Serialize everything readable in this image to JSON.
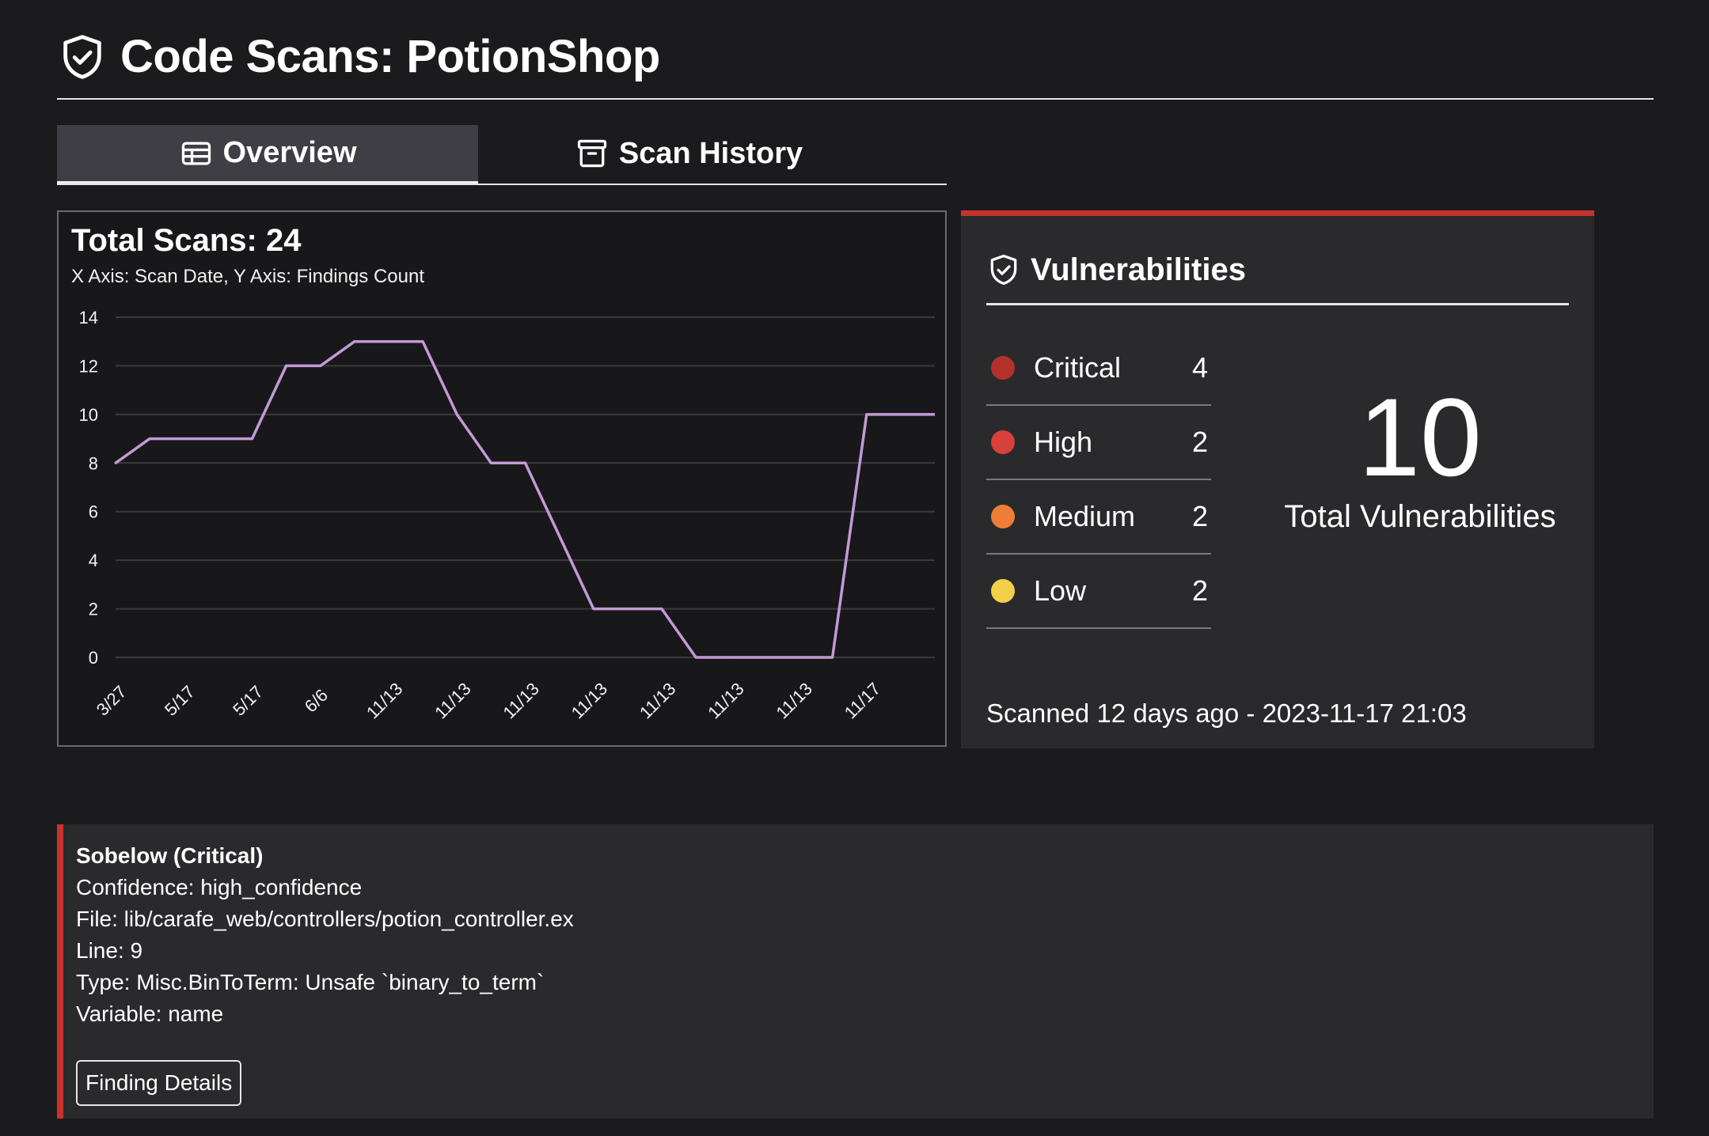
{
  "header": {
    "title": "Code Scans: PotionShop",
    "icon": "shield-check-icon"
  },
  "tabs": [
    {
      "label": "Overview",
      "icon": "table-icon",
      "active": true
    },
    {
      "label": "Scan History",
      "icon": "archive-icon",
      "active": false
    }
  ],
  "chart_panel": {
    "title": "Total Scans: 24",
    "subtitle": "X Axis: Scan Date, Y Axis: Findings Count"
  },
  "chart_data": {
    "type": "line",
    "title": "Total Scans: 24",
    "subtitle": "X Axis: Scan Date, Y Axis: Findings Count",
    "xlabel": "",
    "ylabel": "",
    "ylim": [
      0,
      14
    ],
    "yticks": [
      0,
      2,
      4,
      6,
      8,
      10,
      12,
      14
    ],
    "grid": true,
    "color": "#c39ad6",
    "x_tick_labels": [
      "3/27",
      "5/17",
      "5/17",
      "6/6",
      "11/13",
      "11/13",
      "11/13",
      "11/13",
      "11/13",
      "11/13",
      "11/13",
      "11/17"
    ],
    "x": [
      "3/27",
      "",
      "5/17",
      "",
      "5/17",
      "",
      "6/6",
      "",
      "11/13",
      "",
      "11/13",
      "",
      "11/13",
      "",
      "11/13",
      "",
      "11/13",
      "",
      "11/13",
      "",
      "11/13",
      "",
      "11/17",
      ""
    ],
    "series": [
      {
        "values": [
          8,
          9,
          9,
          9,
          9,
          12,
          12,
          13,
          13,
          13,
          10,
          8,
          8,
          5,
          2,
          2,
          2,
          0,
          0,
          0,
          0,
          0,
          10,
          10
        ]
      }
    ]
  },
  "vulnerabilities": {
    "title": "Vulnerabilities",
    "icon": "shield-check-icon",
    "accent_color": "#c8322c",
    "severities": [
      {
        "label": "Critical",
        "count": "4",
        "color": "#b3312a"
      },
      {
        "label": "High",
        "count": "2",
        "color": "#d8403a"
      },
      {
        "label": "Medium",
        "count": "2",
        "color": "#ee7d38"
      },
      {
        "label": "Low",
        "count": "2",
        "color": "#f2d04a"
      }
    ],
    "total": "10",
    "total_label": "Total Vulnerabilities",
    "scanned": "Scanned 12 days ago - 2023-11-17 21:03"
  },
  "finding": {
    "title": "Sobelow (Critical)",
    "confidence": "Confidence: high_confidence",
    "file": "File: lib/carafe_web/controllers/potion_controller.ex",
    "line": "Line: 9",
    "type": "Type: Misc.BinToTerm: Unsafe `binary_to_term`",
    "variable": "Variable: name",
    "button_label": "Finding Details"
  }
}
